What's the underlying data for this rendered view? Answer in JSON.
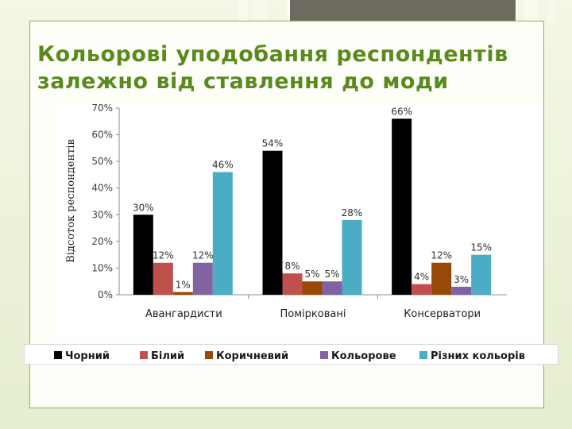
{
  "slide": {
    "title": "Кольорові уподобання респондентів\nзалежно від ставлення до моди"
  },
  "colors": {
    "accent": "#8fb53a",
    "title": "#5a8a1c"
  },
  "chart_data": {
    "type": "bar",
    "title": "",
    "xlabel": "",
    "ylabel": "Відсоток респондентів",
    "ylim": [
      0,
      70
    ],
    "yticks": [
      0,
      10,
      20,
      30,
      40,
      50,
      60,
      70
    ],
    "tick_format": "percent",
    "grid": false,
    "legend_position": "bottom",
    "categories": [
      "Авангардисти",
      "Помірковані",
      "Консерватори"
    ],
    "series": [
      {
        "name": "Чорний",
        "color": "#000000",
        "values": [
          30,
          54,
          66
        ]
      },
      {
        "name": "Білий",
        "color": "#c0504d",
        "values": [
          12,
          8,
          4
        ]
      },
      {
        "name": "Коричневий",
        "color": "#984807",
        "values": [
          1,
          5,
          12
        ]
      },
      {
        "name": "Кольорове",
        "color": "#8064a2",
        "values": [
          12,
          5,
          3
        ]
      },
      {
        "name": "Різних кольорів",
        "color": "#4bacc6",
        "values": [
          46,
          28,
          15
        ]
      }
    ]
  }
}
